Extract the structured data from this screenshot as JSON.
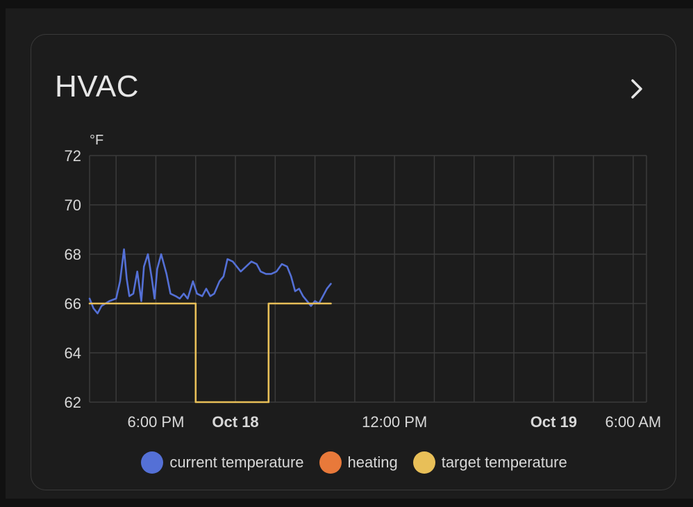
{
  "card": {
    "title": "HVAC",
    "nav_icon": "chevron-right-icon"
  },
  "colors": {
    "current": "#5470d6",
    "heating": "#e8793a",
    "target": "#e8bf58",
    "grid": "#3b3b3b",
    "text": "#d8d8d8"
  },
  "chart_data": {
    "type": "line",
    "unit": "°F",
    "ylim": [
      62,
      72
    ],
    "yticks": [
      62,
      64,
      66,
      68,
      70,
      72
    ],
    "x_range_hours": [
      13.0,
      31.2
    ],
    "xticks": [
      {
        "label": "6:00 PM",
        "hour": 18,
        "bold": false
      },
      {
        "label": "Oct 18",
        "hour": 24,
        "bold": true
      },
      {
        "label": "12:00 PM",
        "hour": 36,
        "bold": false
      },
      {
        "label": "Oct 19",
        "hour": 48,
        "bold": true
      },
      {
        "label": "6:00 AM",
        "hour": 54,
        "bold": false
      }
    ],
    "grid_hours": [
      15,
      18,
      21,
      24,
      27,
      30,
      33,
      36,
      39,
      42,
      45,
      48,
      51,
      54
    ],
    "grid": true,
    "legend_position": "bottom",
    "series": [
      {
        "name": "current temperature",
        "step": false,
        "points": [
          [
            13.0,
            66.2
          ],
          [
            13.3,
            65.8
          ],
          [
            13.6,
            65.6
          ],
          [
            13.9,
            65.9
          ],
          [
            14.2,
            66.0
          ],
          [
            14.5,
            66.1
          ],
          [
            15.0,
            66.2
          ],
          [
            15.3,
            66.9
          ],
          [
            15.6,
            68.2
          ],
          [
            15.8,
            67.0
          ],
          [
            16.0,
            66.3
          ],
          [
            16.3,
            66.4
          ],
          [
            16.6,
            67.3
          ],
          [
            16.9,
            66.1
          ],
          [
            17.1,
            67.5
          ],
          [
            17.4,
            68.0
          ],
          [
            17.7,
            67.0
          ],
          [
            17.9,
            66.2
          ],
          [
            18.1,
            67.4
          ],
          [
            18.4,
            68.0
          ],
          [
            18.8,
            67.2
          ],
          [
            19.1,
            66.4
          ],
          [
            19.5,
            66.3
          ],
          [
            19.8,
            66.2
          ],
          [
            20.1,
            66.4
          ],
          [
            20.4,
            66.2
          ],
          [
            20.8,
            66.9
          ],
          [
            21.1,
            66.4
          ],
          [
            21.5,
            66.3
          ],
          [
            21.8,
            66.6
          ],
          [
            22.1,
            66.3
          ],
          [
            22.4,
            66.4
          ],
          [
            22.8,
            66.9
          ],
          [
            23.1,
            67.1
          ],
          [
            23.4,
            67.8
          ],
          [
            23.8,
            67.7
          ],
          [
            24.1,
            67.5
          ],
          [
            24.4,
            67.3
          ],
          [
            24.8,
            67.5
          ],
          [
            25.2,
            67.7
          ],
          [
            25.6,
            67.6
          ],
          [
            25.9,
            67.3
          ],
          [
            26.3,
            67.2
          ],
          [
            26.7,
            67.2
          ],
          [
            27.1,
            67.3
          ],
          [
            27.5,
            67.6
          ],
          [
            27.9,
            67.5
          ],
          [
            28.2,
            67.1
          ],
          [
            28.5,
            66.5
          ],
          [
            28.8,
            66.6
          ],
          [
            29.1,
            66.3
          ],
          [
            29.4,
            66.1
          ],
          [
            29.7,
            65.9
          ],
          [
            30.0,
            66.1
          ],
          [
            30.3,
            66.0
          ],
          [
            30.6,
            66.3
          ],
          [
            30.9,
            66.6
          ],
          [
            31.2,
            66.8
          ]
        ]
      },
      {
        "name": "heating",
        "step": true,
        "points": []
      },
      {
        "name": "target temperature",
        "step": true,
        "points": [
          [
            13.0,
            66
          ],
          [
            21.0,
            66
          ],
          [
            21.0,
            62
          ],
          [
            26.5,
            62
          ],
          [
            26.5,
            66
          ],
          [
            31.2,
            66
          ]
        ]
      }
    ]
  }
}
